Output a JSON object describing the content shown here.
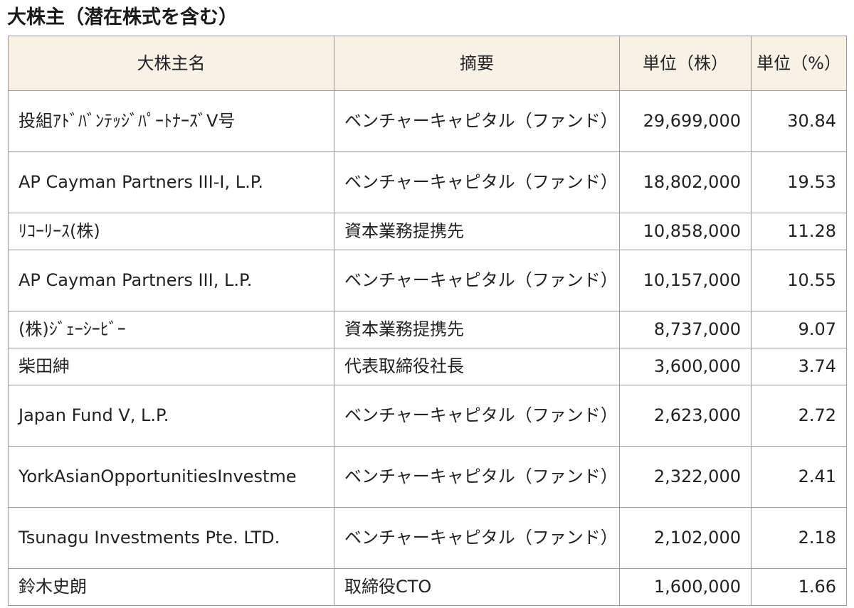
{
  "title": "大株主（潜在株式を含む）",
  "table": {
    "headers": {
      "name": "大株主名",
      "summary": "摘要",
      "shares": "単位（株）",
      "ratio": "単位（%）"
    },
    "rows": [
      {
        "name": "投組ｱﾄﾞﾊﾞﾝﾃｯｼﾞﾊﾟｰﾄﾅｰｽﾞV号",
        "summary": "ベンチャーキャピタル（ファンド）",
        "shares": "29,699,000",
        "ratio": "30.84"
      },
      {
        "name": "AP Cayman Partners III-I, L.P.",
        "summary": "ベンチャーキャピタル（ファンド）",
        "shares": "18,802,000",
        "ratio": "19.53"
      },
      {
        "name": "ﾘｺｰﾘｰｽ(株)",
        "summary": "資本業務提携先",
        "shares": "10,858,000",
        "ratio": "11.28"
      },
      {
        "name": "AP Cayman Partners III, L.P.",
        "summary": "ベンチャーキャピタル（ファンド）",
        "shares": "10,157,000",
        "ratio": "10.55"
      },
      {
        "name": "(株)ｼﾞｪｰｼｰﾋﾞｰ",
        "summary": "資本業務提携先",
        "shares": "8,737,000",
        "ratio": "9.07"
      },
      {
        "name": "柴田紳",
        "summary": "代表取締役社長",
        "shares": "3,600,000",
        "ratio": "3.74"
      },
      {
        "name": "Japan Fund V, L.P.",
        "summary": "ベンチャーキャピタル（ファンド）",
        "shares": "2,623,000",
        "ratio": "2.72"
      },
      {
        "name": "YorkAsianOpportunitiesInvestme",
        "summary": "ベンチャーキャピタル（ファンド）",
        "shares": "2,322,000",
        "ratio": "2.41"
      },
      {
        "name": "Tsunagu Investments Pte. LTD.",
        "summary": "ベンチャーキャピタル（ファンド）",
        "shares": "2,102,000",
        "ratio": "2.18"
      },
      {
        "name": "鈴木史朗",
        "summary": "取締役CTO",
        "shares": "1,600,000",
        "ratio": "1.66"
      }
    ]
  }
}
